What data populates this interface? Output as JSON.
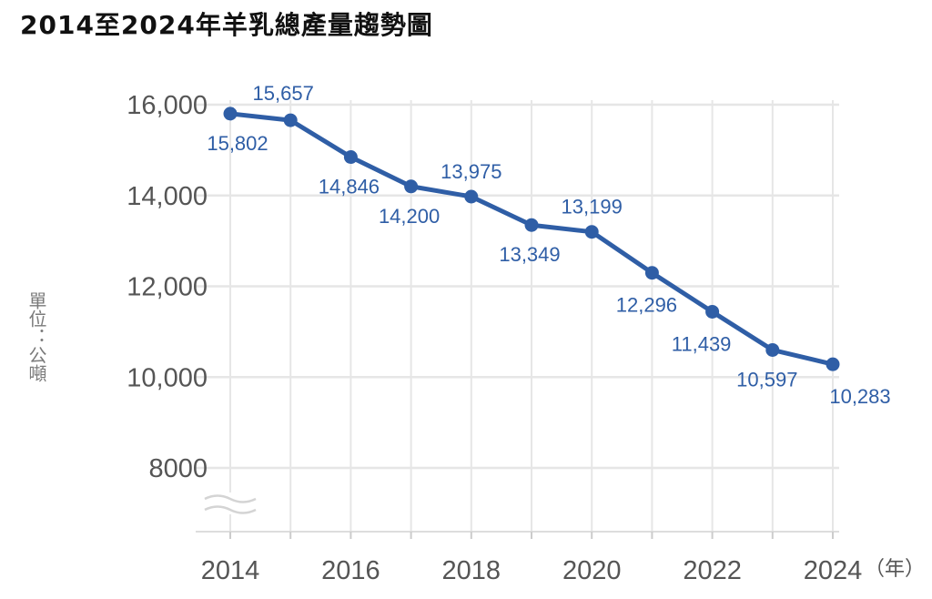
{
  "chart_data": {
    "type": "line",
    "title": "2014至2024年羊乳總產量趨勢圖",
    "ylabel": "單位：公噸",
    "xlabel_unit": "（年）",
    "x": [
      2014,
      2015,
      2016,
      2017,
      2018,
      2019,
      2020,
      2021,
      2022,
      2023,
      2024
    ],
    "values": [
      15802,
      15657,
      14846,
      14200,
      13975,
      13349,
      13199,
      12296,
      11439,
      10597,
      10283
    ],
    "data_labels": [
      "15,802",
      "15,657",
      "14,846",
      "14,200",
      "13,975",
      "13,349",
      "13,199",
      "12,296",
      "11,439",
      "10,597",
      "10,283"
    ],
    "x_ticks": [
      2014,
      2016,
      2018,
      2020,
      2022,
      2024
    ],
    "y_ticks": [
      8000,
      10000,
      12000,
      14000,
      16000
    ],
    "y_tick_labels": [
      "8000",
      "10,000",
      "12,000",
      "14,000",
      "16,000"
    ],
    "ylim": [
      6500,
      16200
    ],
    "axis_break": true,
    "grid": true,
    "legend": "none",
    "colors": {
      "line": "#2f5ea6",
      "grid": "#e6e6e6",
      "axis": "#555555"
    }
  }
}
